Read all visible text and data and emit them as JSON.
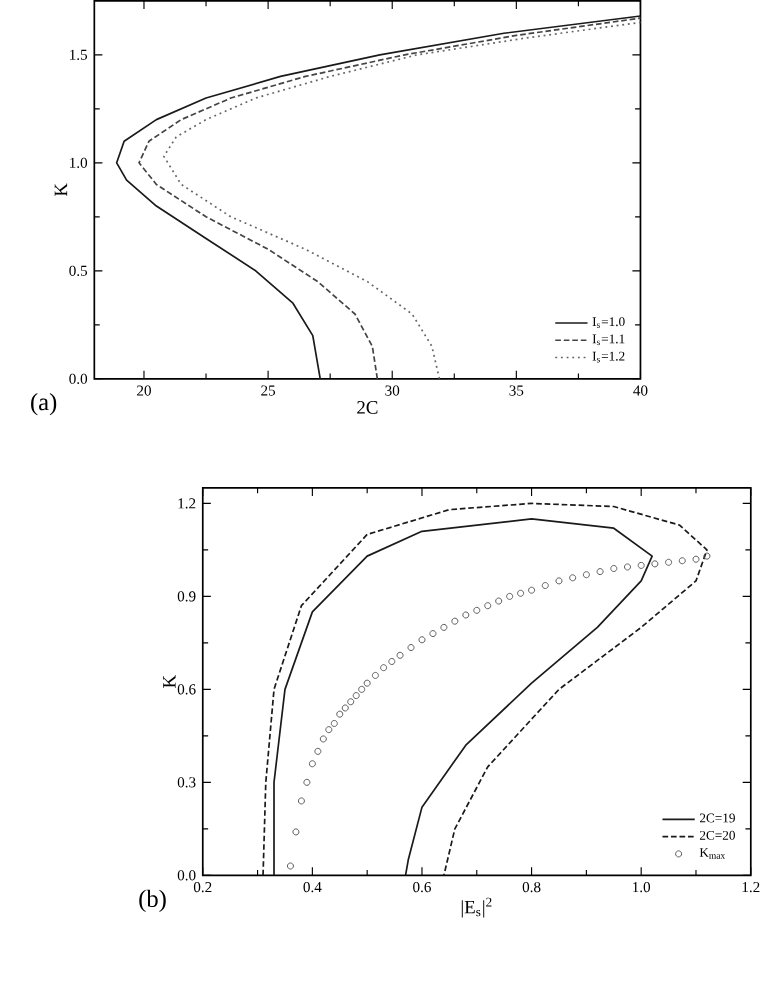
{
  "chart_data": [
    {
      "type": "line",
      "xlabel": "2C",
      "ylabel": "K",
      "annotations": [
        "(a)"
      ],
      "xlim": [
        18,
        40
      ],
      "ylim": [
        0,
        1.75
      ],
      "xticks": [
        20,
        25,
        30,
        35,
        40
      ],
      "yticks": [
        {
          "value": 0,
          "label": "0.0"
        },
        {
          "value": 0.5,
          "label": "0.5"
        },
        {
          "value": 1.0,
          "label": "1.0"
        },
        {
          "value": 1.5,
          "label": "1.5"
        }
      ],
      "legend": "bottom right",
      "grid": false,
      "marker": "none",
      "series": [
        {
          "name": "I$_{s}$=1.0",
          "color": "#1a1a1a",
          "line_style": "solid",
          "x": [
            27.1,
            26.8,
            26.0,
            24.5,
            22.5,
            20.5,
            19.3,
            18.9,
            19.2,
            20.5,
            22.5,
            25.5,
            29.5,
            34.5,
            40
          ],
          "values": [
            0,
            0.2,
            0.35,
            0.5,
            0.65,
            0.8,
            0.92,
            1.0,
            1.1,
            1.2,
            1.3,
            1.4,
            1.5,
            1.6,
            1.68
          ]
        },
        {
          "name": "I$_{s}$=1.1",
          "color": "#444444",
          "line_style": "dashed",
          "x": [
            29.4,
            29.2,
            28.5,
            27.0,
            25.0,
            22.5,
            20.5,
            19.8,
            20.2,
            21.5,
            23.5,
            26.5,
            30.5,
            35,
            40
          ],
          "values": [
            0,
            0.15,
            0.3,
            0.45,
            0.6,
            0.75,
            0.9,
            1.0,
            1.1,
            1.2,
            1.3,
            1.4,
            1.5,
            1.59,
            1.67
          ]
        },
        {
          "name": "I$_{s}$=1.2",
          "color": "#666666",
          "line_style": "dotted",
          "x": [
            31.9,
            31.6,
            30.8,
            29.0,
            26.5,
            23.5,
            21.5,
            20.8,
            21.3,
            22.5,
            24.5,
            27.5,
            31.0,
            35.5,
            40
          ],
          "values": [
            0,
            0.15,
            0.3,
            0.45,
            0.6,
            0.75,
            0.9,
            1.03,
            1.12,
            1.2,
            1.3,
            1.4,
            1.5,
            1.58,
            1.65
          ]
        }
      ]
    },
    {
      "type": "line",
      "xlabel": "|E$_{s}$|$^{2}$",
      "ylabel": "K",
      "annotations": [
        "(b)"
      ],
      "xlim": [
        0.2,
        1.2
      ],
      "ylim": [
        0,
        1.25
      ],
      "xticks": [
        0.2,
        0.4,
        0.6,
        0.8,
        {
          "value": 1.0,
          "label": "1.0"
        },
        1.2
      ],
      "yticks": [
        {
          "value": 0,
          "label": "0.0"
        },
        0.3,
        0.6,
        0.9,
        1.2
      ],
      "legend": "bottom right",
      "grid": false,
      "series": [
        {
          "name": "2C=19",
          "color": "#1a1a1a",
          "line_style": "solid",
          "marker": "none",
          "x": [
            0.33,
            0.33,
            0.35,
            0.4,
            0.5,
            0.6,
            0.8,
            0.95,
            1.02,
            1.0,
            0.92,
            0.8,
            0.68,
            0.6,
            0.575,
            0.57
          ],
          "values": [
            0,
            0.3,
            0.6,
            0.85,
            1.03,
            1.11,
            1.15,
            1.12,
            1.03,
            0.95,
            0.8,
            0.62,
            0.42,
            0.22,
            0.05,
            0
          ]
        },
        {
          "name": "2C=20",
          "color": "#1a1a1a",
          "line_style": "dashed",
          "marker": "none",
          "x": [
            0.31,
            0.315,
            0.33,
            0.38,
            0.5,
            0.65,
            0.8,
            0.95,
            1.07,
            1.12,
            1.1,
            1.0,
            0.85,
            0.72,
            0.66,
            0.64
          ],
          "values": [
            0,
            0.3,
            0.6,
            0.87,
            1.1,
            1.18,
            1.2,
            1.19,
            1.13,
            1.05,
            0.95,
            0.8,
            0.6,
            0.35,
            0.15,
            0
          ]
        },
        {
          "name": "K$_{max}$",
          "type": "scatter",
          "color": "#555555",
          "marker": "circle",
          "x": [
            0.36,
            0.37,
            0.38,
            0.39,
            0.4,
            0.41,
            0.42,
            0.43,
            0.44,
            0.45,
            0.46,
            0.47,
            0.48,
            0.49,
            0.5,
            0.515,
            0.53,
            0.545,
            0.56,
            0.58,
            0.6,
            0.62,
            0.64,
            0.66,
            0.68,
            0.7,
            0.72,
            0.74,
            0.76,
            0.78,
            0.8,
            0.825,
            0.85,
            0.875,
            0.9,
            0.925,
            0.95,
            0.975,
            1.0,
            1.025,
            1.05,
            1.075,
            1.1,
            1.12
          ],
          "values": [
            0.03,
            0.14,
            0.24,
            0.3,
            0.36,
            0.4,
            0.44,
            0.47,
            0.49,
            0.52,
            0.54,
            0.56,
            0.58,
            0.6,
            0.62,
            0.645,
            0.67,
            0.69,
            0.71,
            0.735,
            0.76,
            0.78,
            0.8,
            0.82,
            0.84,
            0.855,
            0.87,
            0.885,
            0.9,
            0.91,
            0.92,
            0.935,
            0.95,
            0.96,
            0.97,
            0.98,
            0.99,
            0.995,
            1.0,
            1.005,
            1.01,
            1.015,
            1.02,
            1.03
          ]
        }
      ]
    }
  ]
}
